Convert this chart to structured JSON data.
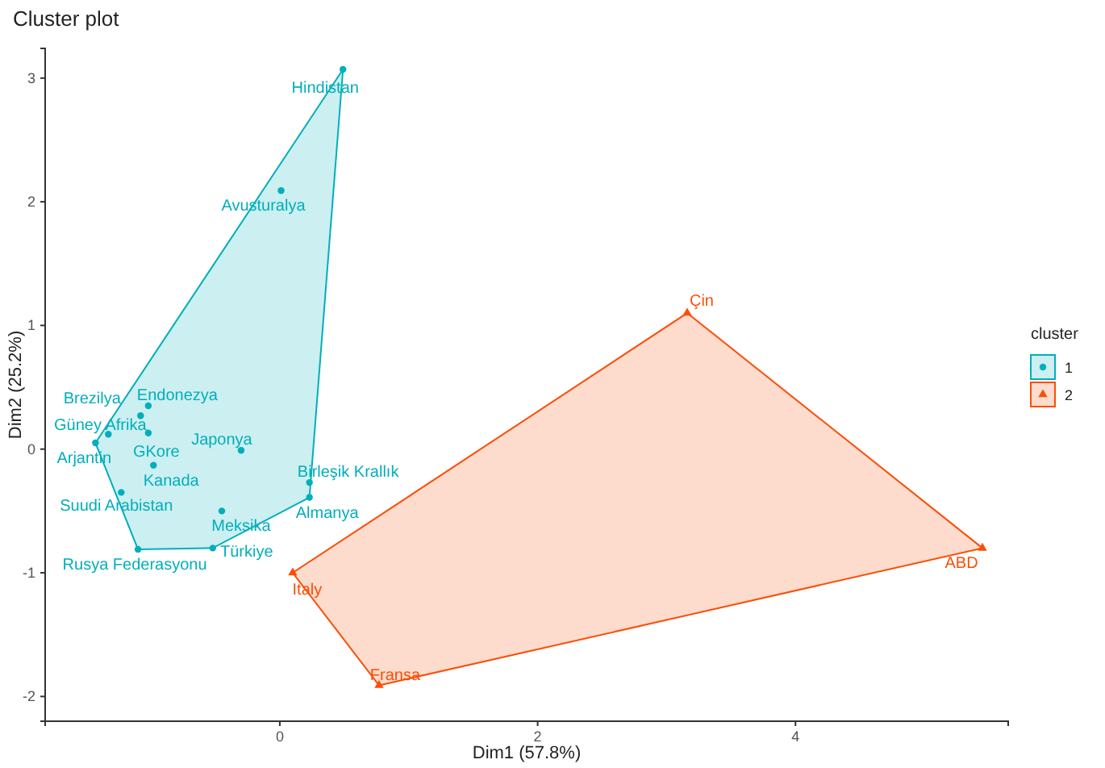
{
  "chart_data": {
    "type": "scatter",
    "title": "Cluster plot",
    "xlabel": "Dim1 (57.8%)",
    "ylabel": "Dim2 (25.2%)",
    "legend_title": "cluster",
    "legend": "right",
    "grid": false,
    "xlim": [
      -1.82,
      5.65
    ],
    "ylim": [
      -2.2,
      3.24
    ],
    "xticks": [
      0,
      2,
      4
    ],
    "yticks": [
      -2,
      -1,
      0,
      1,
      2,
      3
    ],
    "series": [
      {
        "name": "1",
        "color": "#00afbb",
        "marker": "circle",
        "x": [
          0.49,
          0.01,
          -1.02,
          -1.08,
          -1.33,
          -1.02,
          -1.43,
          -0.3,
          -0.98,
          -1.23,
          0.23,
          0.23,
          -0.45,
          -0.52,
          -1.1
        ],
        "values": [
          3.07,
          2.09,
          0.35,
          0.27,
          0.12,
          0.13,
          0.05,
          -0.01,
          -0.13,
          -0.35,
          -0.27,
          -0.39,
          -0.5,
          -0.8,
          -0.81
        ]
      },
      {
        "name": "2",
        "color": "#fc4e07",
        "marker": "triangle",
        "x": [
          3.16,
          5.45,
          0.1,
          0.77
        ],
        "values": [
          1.1,
          -0.8,
          -1.0,
          -1.91
        ]
      }
    ],
    "annotations": [
      {
        "text": "Hindistan",
        "x": 0.49,
        "y": 3.07
      },
      {
        "text": "Avusturalya",
        "x": 0.01,
        "y": 2.09
      },
      {
        "text": "Endonezya",
        "x": -1.02,
        "y": 0.35
      },
      {
        "text": "Brezilya",
        "x": -1.08,
        "y": 0.27
      },
      {
        "text": "Güney Afrika",
        "x": -1.33,
        "y": 0.12
      },
      {
        "text": "GKore",
        "x": -1.02,
        "y": 0.13
      },
      {
        "text": "Arjantin",
        "x": -1.43,
        "y": 0.05
      },
      {
        "text": "Japonya",
        "x": -0.3,
        "y": -0.01
      },
      {
        "text": "Kanada",
        "x": -0.98,
        "y": -0.13
      },
      {
        "text": "Suudi Arabistan",
        "x": -1.23,
        "y": -0.35
      },
      {
        "text": "Birleşik Krallık",
        "x": 0.23,
        "y": -0.27
      },
      {
        "text": "Almanya",
        "x": 0.23,
        "y": -0.39
      },
      {
        "text": "Meksika",
        "x": -0.45,
        "y": -0.5
      },
      {
        "text": "Türkiye",
        "x": -0.52,
        "y": -0.8
      },
      {
        "text": "Rusya Federasyonu",
        "x": -1.1,
        "y": -0.81
      },
      {
        "text": "Çin",
        "x": 3.16,
        "y": 1.1
      },
      {
        "text": "ABD",
        "x": 5.45,
        "y": -0.8
      },
      {
        "text": "Italy",
        "x": 0.1,
        "y": -1.0
      },
      {
        "text": "Fransa",
        "x": 0.77,
        "y": -1.91
      }
    ]
  }
}
